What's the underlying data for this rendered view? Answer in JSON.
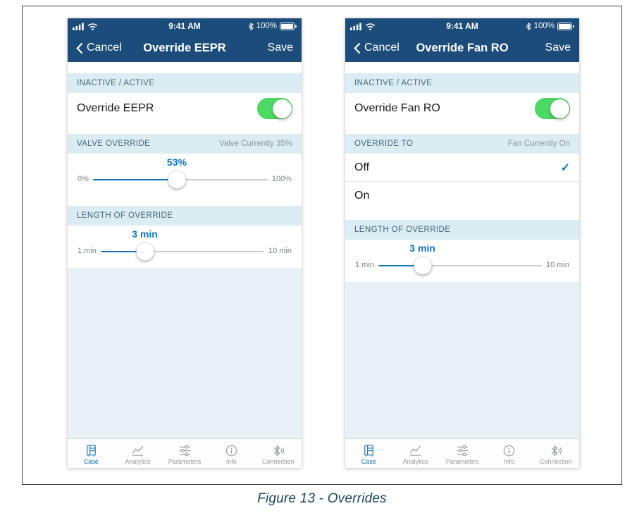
{
  "caption": "Figure 13 - Overrides",
  "colors": {
    "navy_bar": "#1b4c7a",
    "accent_blue": "#1174b8",
    "toggle_green": "#4cd964",
    "section_header_bg": "#dbecf2",
    "filler_bg": "#e8f2f6"
  },
  "status_bar": {
    "time": "9:41 AM",
    "battery_pct": "100%"
  },
  "left_phone": {
    "nav": {
      "back_label": "Cancel",
      "title": "Override EEPR",
      "save_label": "Save"
    },
    "active_header": "INACTIVE / ACTIVE",
    "toggle_label": "Override EEPR",
    "toggle_on": true,
    "override_header": "VALVE OVERRIDE",
    "override_status": "Valve Currently 35%",
    "valve_slider": {
      "value": "53%",
      "min_label": "0%",
      "max_label": "100%",
      "percent": 48
    },
    "length_header": "LENGTH OF OVERRIDE",
    "length_slider": {
      "value": "3 min",
      "min_label": "1 min",
      "max_label": "10 min",
      "percent": 27
    }
  },
  "right_phone": {
    "nav": {
      "back_label": "Cancel",
      "title": "Override Fan RO",
      "save_label": "Save"
    },
    "active_header": "INACTIVE / ACTIVE",
    "toggle_label": "Override Fan RO",
    "toggle_on": true,
    "override_header": "OVERRIDE TO",
    "override_status": "Fan Currently On",
    "options": [
      {
        "label": "Off",
        "selected": true
      },
      {
        "label": "On",
        "selected": false
      }
    ],
    "length_header": "LENGTH OF OVERRIDE",
    "length_slider": {
      "value": "3 min",
      "min_label": "1 min",
      "max_label": "10 min",
      "percent": 27
    }
  },
  "tab_bar": {
    "items": [
      "Case",
      "Analytics",
      "Parameters",
      "Info",
      "Connection"
    ],
    "selected": "Case"
  }
}
